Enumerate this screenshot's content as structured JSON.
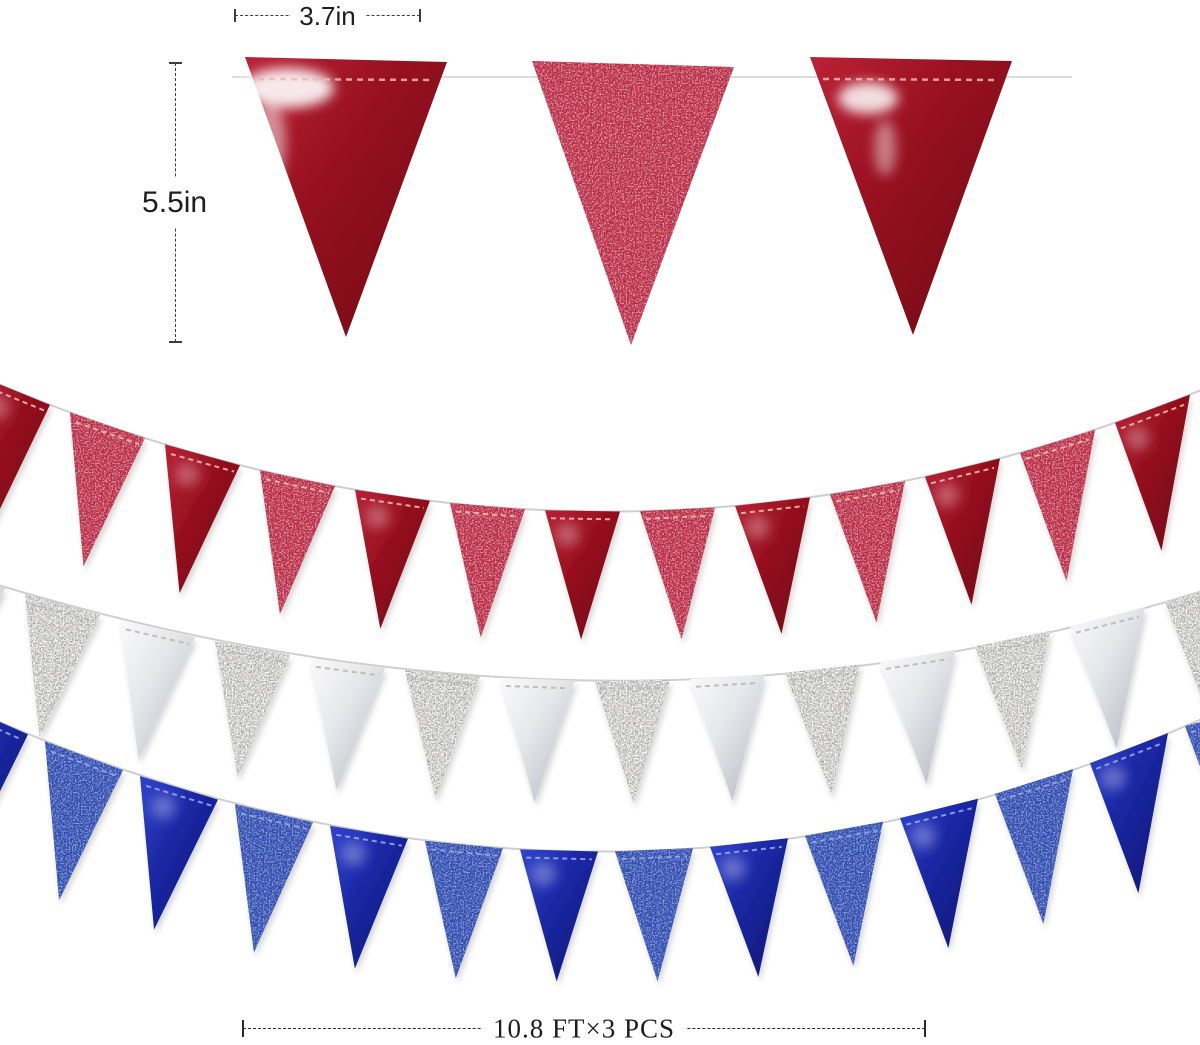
{
  "banner": {
    "background_color": "#ffffff",
    "annotations": {
      "flag_width_label": "3.7in",
      "flag_height_label": "5.5in",
      "garland_length_label": "10.8 FT×3 PCS"
    },
    "detail_flags": [
      {
        "style": "metallic",
        "color": "red"
      },
      {
        "style": "glitter",
        "color": "red"
      },
      {
        "style": "metallic",
        "color": "red"
      }
    ],
    "strands": [
      {
        "name": "red-strand",
        "color": "red",
        "flag_count": 13,
        "start_style": "metallic",
        "alternating": [
          "metallic",
          "glitter"
        ]
      },
      {
        "name": "silver-strand",
        "color": "silver",
        "flag_count": 14,
        "start_style": "metallic",
        "alternating": [
          "metallic",
          "glitter"
        ]
      },
      {
        "name": "blue-strand",
        "color": "blue",
        "flag_count": 14,
        "start_style": "metallic",
        "alternating": [
          "metallic",
          "glitter"
        ]
      }
    ],
    "colors": {
      "string": "#cfcfcf",
      "annotation_text": "#1e1e1e",
      "red_metallic": [
        "#bb2136",
        "#96101f",
        "#6f0a15"
      ],
      "red_glitter": "#c22340",
      "silver_metallic": [
        "#fafafb",
        "#e6e7eb",
        "#b2b5bf"
      ],
      "silver_glitter": "#d6d5d0",
      "blue_metallic": [
        "#3144ce",
        "#1b27a4",
        "#0d156f"
      ],
      "blue_glitter": "#2b4ab6",
      "stitch_red": "#efb9b0",
      "stitch_silver": "#b9b9bd",
      "stitch_blue": "#93a7e8"
    }
  }
}
